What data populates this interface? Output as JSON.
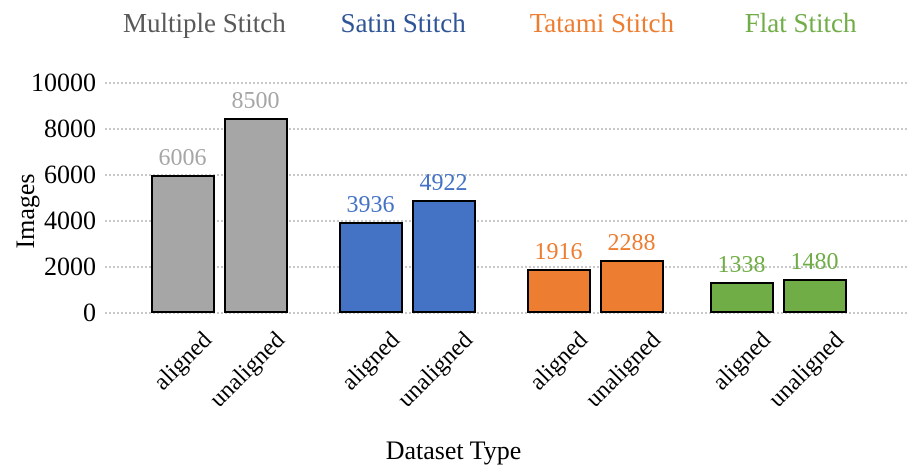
{
  "legend": {
    "entries": [
      {
        "label": "Multiple Stitch",
        "color": "#595959"
      },
      {
        "label": "Satin Stitch",
        "color": "#2F5597"
      },
      {
        "label": "Tatami Stitch",
        "color": "#ED7D31"
      },
      {
        "label": "Flat Stitch",
        "color": "#70AD47"
      }
    ],
    "position": "top"
  },
  "chart_data": {
    "type": "bar",
    "title": "",
    "xlabel": "Dataset Type",
    "ylabel": "Images",
    "categories": [
      "Multiple Stitch",
      "Satin Stitch",
      "Tatami Stitch",
      "Flat Stitch"
    ],
    "category_colors": [
      "#A6A6A6",
      "#4472C4",
      "#ED7D31",
      "#70AD47"
    ],
    "data_label_colors": [
      "#A6A6A6",
      "#4472C4",
      "#ED7D31",
      "#70AD47"
    ],
    "bar_border_color": "#000000",
    "x_sublabels": [
      "aligned",
      "unaligned"
    ],
    "series": [
      {
        "name": "aligned",
        "values": [
          6006,
          3936,
          1916,
          1338
        ]
      },
      {
        "name": "unaligned",
        "values": [
          8500,
          4922,
          2288,
          1480
        ]
      }
    ],
    "ylim": [
      0,
      10000
    ],
    "y_ticks": [
      0,
      2000,
      4000,
      6000,
      8000,
      10000
    ],
    "grid": {
      "horizontal": true,
      "style": "dotted",
      "color": "#C9C9C9"
    },
    "legend_position": "top"
  }
}
